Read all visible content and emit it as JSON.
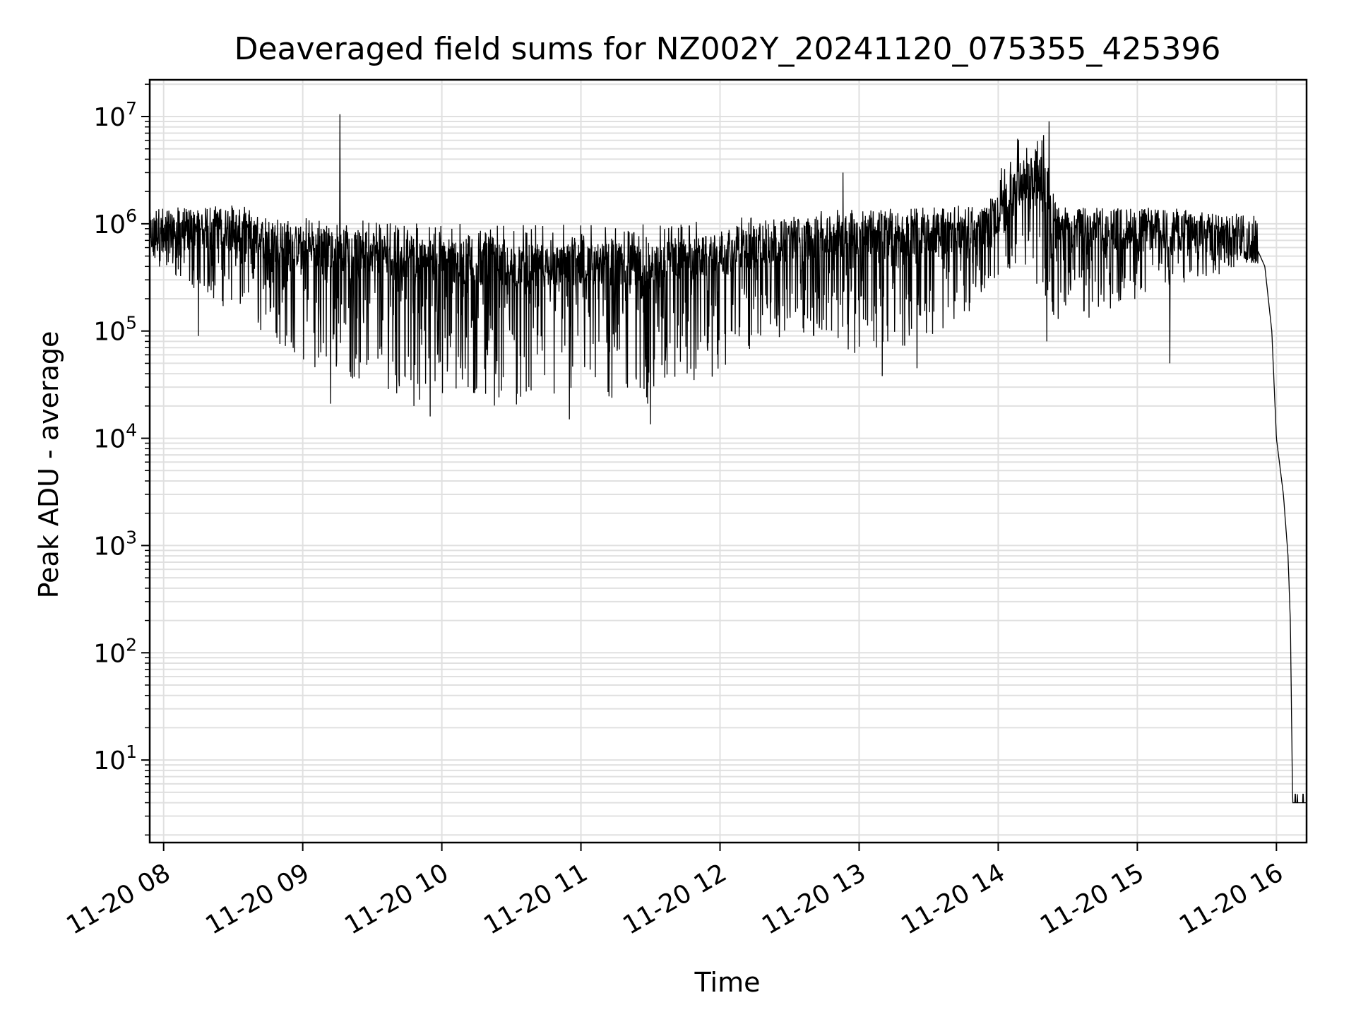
{
  "chart_data": {
    "type": "line",
    "title": "Deaveraged field sums for NZ002Y_20241120_075355_425396",
    "xlabel": "Time",
    "ylabel": "Peak ADU - average",
    "y_scale": "log",
    "ylim": [
      1.7,
      22000000
    ],
    "xlim": [
      "11-20 07:54",
      "11-20 16:13"
    ],
    "x_ticks": [
      "11-20 08",
      "11-20 09",
      "11-20 10",
      "11-20 11",
      "11-20 12",
      "11-20 13",
      "11-20 14",
      "11-20 15",
      "11-20 16"
    ],
    "x_tick_values": [
      "2024-11-20 08:00",
      "2024-11-20 09:00",
      "2024-11-20 10:00",
      "2024-11-20 11:00",
      "2024-11-20 12:00",
      "2024-11-20 13:00",
      "2024-11-20 14:00",
      "2024-11-20 15:00",
      "2024-11-20 16:00"
    ],
    "y_ticks": [
      {
        "base": "10",
        "exp": "1",
        "value": 10
      },
      {
        "base": "10",
        "exp": "2",
        "value": 100
      },
      {
        "base": "10",
        "exp": "3",
        "value": 1000
      },
      {
        "base": "10",
        "exp": "4",
        "value": 10000
      },
      {
        "base": "10",
        "exp": "5",
        "value": 100000
      },
      {
        "base": "10",
        "exp": "6",
        "value": 1000000
      },
      {
        "base": "10",
        "exp": "7",
        "value": 10000000
      }
    ],
    "grid": true,
    "line_color": "#000000",
    "grid_color": "#e0e0e0",
    "series": [
      {
        "baseline": [
          [
            "07:54",
            800000
          ],
          [
            "08:15",
            900000
          ],
          [
            "08:30",
            900000
          ],
          [
            "08:45",
            700000
          ],
          [
            "09:00",
            600000
          ],
          [
            "09:30",
            550000
          ],
          [
            "10:00",
            450000
          ],
          [
            "10:30",
            400000
          ],
          [
            "11:00",
            420000
          ],
          [
            "11:30",
            420000
          ],
          [
            "12:00",
            500000
          ],
          [
            "12:30",
            700000
          ],
          [
            "13:00",
            800000
          ],
          [
            "13:30",
            800000
          ],
          [
            "13:55",
            900000
          ],
          [
            "14:10",
            2500000
          ],
          [
            "14:20",
            2500000
          ],
          [
            "14:25",
            900000
          ],
          [
            "15:00",
            900000
          ],
          [
            "15:40",
            850000
          ],
          [
            "15:50",
            700000
          ],
          [
            "15:55",
            400000
          ],
          [
            "15:58",
            100000
          ],
          [
            "16:00",
            10000
          ],
          [
            "16:03",
            3000
          ],
          [
            "16:05",
            800
          ],
          [
            "16:06",
            200
          ],
          [
            "16:07",
            4
          ],
          [
            "16:13",
            4
          ]
        ],
        "upper_envelope": [
          [
            "07:54",
            1400000
          ],
          [
            "08:30",
            1500000
          ],
          [
            "09:00",
            1200000
          ],
          [
            "10:00",
            1000000
          ],
          [
            "11:00",
            1000000
          ],
          [
            "12:00",
            1100000
          ],
          [
            "12:30",
            1300000
          ],
          [
            "13:00",
            1400000
          ],
          [
            "13:55",
            1500000
          ],
          [
            "14:05",
            6000000
          ],
          [
            "14:20",
            7000000
          ],
          [
            "14:25",
            1400000
          ],
          [
            "15:00",
            1400000
          ],
          [
            "15:50",
            1200000
          ]
        ],
        "lower_envelope": [
          [
            "07:54",
            400000
          ],
          [
            "08:30",
            150000
          ],
          [
            "09:00",
            50000
          ],
          [
            "09:30",
            30000
          ],
          [
            "10:00",
            20000
          ],
          [
            "10:30",
            20000
          ],
          [
            "11:00",
            20000
          ],
          [
            "11:30",
            20000
          ],
          [
            "12:00",
            40000
          ],
          [
            "12:30",
            100000
          ],
          [
            "13:00",
            60000
          ],
          [
            "13:30",
            80000
          ],
          [
            "13:55",
            200000
          ],
          [
            "14:10",
            500000
          ],
          [
            "14:25",
            100000
          ],
          [
            "15:00",
            200000
          ],
          [
            "15:50",
            400000
          ]
        ],
        "spikes": [
          [
            "08:15",
            90000
          ],
          [
            "09:16",
            10500000
          ],
          [
            "09:12",
            21000
          ],
          [
            "09:48",
            20000
          ],
          [
            "09:55",
            16000
          ],
          [
            "10:55",
            15000
          ],
          [
            "11:30",
            13500
          ],
          [
            "12:53",
            3000000
          ],
          [
            "13:10",
            38000
          ],
          [
            "13:25",
            45000
          ],
          [
            "14:22",
            9000000
          ],
          [
            "14:21",
            80000
          ],
          [
            "15:14",
            50000
          ]
        ]
      }
    ]
  }
}
